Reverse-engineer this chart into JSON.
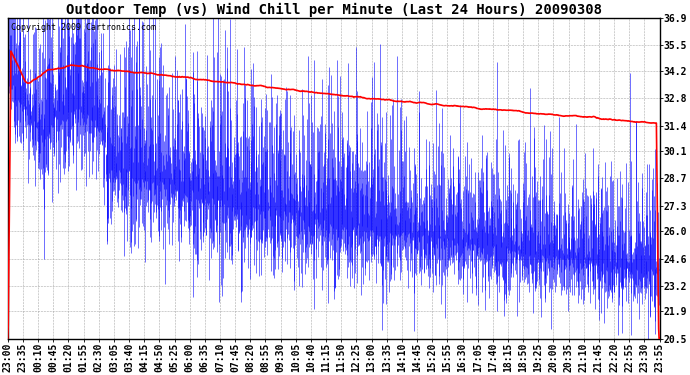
{
  "title": "Outdoor Temp (vs) Wind Chill per Minute (Last 24 Hours) 20090308",
  "copyright": "Copyright 2009 Cartronics.com",
  "yticks": [
    20.5,
    21.9,
    23.2,
    24.6,
    26.0,
    27.3,
    28.7,
    30.1,
    31.4,
    32.8,
    34.2,
    35.5,
    36.9
  ],
  "ymin": 20.5,
  "ymax": 36.9,
  "xtick_labels": [
    "23:00",
    "23:35",
    "00:10",
    "00:45",
    "01:20",
    "01:55",
    "02:30",
    "03:05",
    "03:40",
    "04:15",
    "04:50",
    "05:25",
    "06:00",
    "06:35",
    "07:10",
    "07:45",
    "08:20",
    "08:55",
    "09:30",
    "10:05",
    "10:40",
    "11:15",
    "11:50",
    "12:25",
    "13:00",
    "13:35",
    "14:10",
    "14:45",
    "15:20",
    "15:55",
    "16:30",
    "17:05",
    "17:40",
    "18:15",
    "18:50",
    "19:25",
    "20:00",
    "20:35",
    "21:10",
    "21:45",
    "22:20",
    "22:55",
    "23:30",
    "23:55"
  ],
  "background_color": "#ffffff",
  "plot_bg_color": "#ffffff",
  "grid_color": "#aaaaaa",
  "line_blue_color": "#0000ff",
  "line_red_color": "#ff0000",
  "title_fontsize": 10,
  "copyright_fontsize": 6,
  "tick_fontsize": 7,
  "fig_width": 6.9,
  "fig_height": 3.75,
  "dpi": 100
}
